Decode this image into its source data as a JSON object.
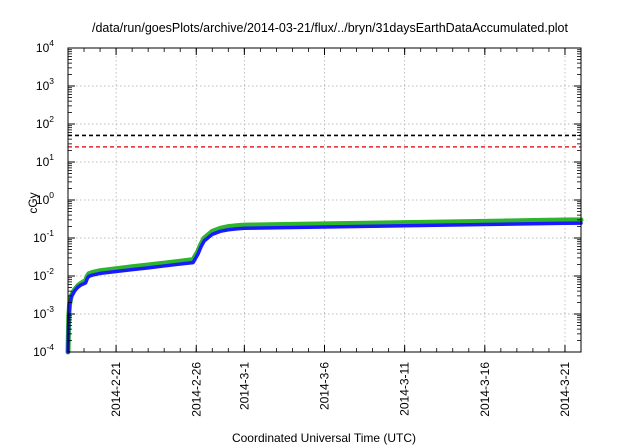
{
  "chart_data": {
    "type": "line",
    "title": "/data/run/goesPlots/archive/2014-03-21/flux/../bryn/31daysEarthDataAccumulated.plot",
    "xlabel": "Coordinated Universal Time (UTC)",
    "ylabel": "cGy",
    "y_scale": "log",
    "ylim": [
      0.0001,
      10000
    ],
    "xlim": [
      "2014-02-18",
      "2014-03-22"
    ],
    "grid": true,
    "y_ticks": [
      {
        "value": 0.0001,
        "base": "10",
        "exp": "-4"
      },
      {
        "value": 0.001,
        "base": "10",
        "exp": "-3"
      },
      {
        "value": 0.01,
        "base": "10",
        "exp": "-2"
      },
      {
        "value": 0.1,
        "base": "10",
        "exp": "-1"
      },
      {
        "value": 1,
        "base": "10",
        "exp": "0"
      },
      {
        "value": 10,
        "base": "10",
        "exp": "1"
      },
      {
        "value": 100,
        "base": "10",
        "exp": "2"
      },
      {
        "value": 1000,
        "base": "10",
        "exp": "3"
      },
      {
        "value": 10000,
        "base": "10",
        "exp": "4"
      }
    ],
    "x_ticks": [
      {
        "date": "2014-02-21",
        "label": "2014-2-21"
      },
      {
        "date": "2014-02-26",
        "label": "2014-2-26"
      },
      {
        "date": "2014-03-01",
        "label": "2014-3-1"
      },
      {
        "date": "2014-03-06",
        "label": "2014-3-6"
      },
      {
        "date": "2014-03-11",
        "label": "2014-3-11"
      },
      {
        "date": "2014-03-16",
        "label": "2014-3-16"
      },
      {
        "date": "2014-03-21",
        "label": "2014-3-21"
      }
    ],
    "reference_lines": [
      {
        "y": 50,
        "color": "#000000",
        "style": "dashed"
      },
      {
        "y": 25,
        "color": "#e8262a",
        "style": "dashed"
      }
    ],
    "series": [
      {
        "color": "#2db52d",
        "points": [
          [
            "2014-02-18T00:00",
            0.0001
          ],
          [
            "2014-02-18T01:12",
            0.0009
          ],
          [
            "2014-02-18T02:24",
            0.0018
          ],
          [
            "2014-02-18T04:48",
            0.003
          ],
          [
            "2014-02-18T09:36",
            0.0043
          ],
          [
            "2014-02-18T14:24",
            0.0055
          ],
          [
            "2014-02-18T19:12",
            0.0064
          ],
          [
            "2014-02-19T00:00",
            0.0072
          ],
          [
            "2014-02-19T02:24",
            0.0076
          ],
          [
            "2014-02-19T04:48",
            0.0098
          ],
          [
            "2014-02-19T07:12",
            0.0115
          ],
          [
            "2014-02-19T12:00",
            0.0123
          ],
          [
            "2014-02-20T00:00",
            0.0138
          ],
          [
            "2014-02-21T00:00",
            0.0155
          ],
          [
            "2014-02-22T00:00",
            0.0175
          ],
          [
            "2014-02-23T00:00",
            0.0195
          ],
          [
            "2014-02-24T00:00",
            0.0218
          ],
          [
            "2014-02-25T00:00",
            0.0245
          ],
          [
            "2014-02-25T19:12",
            0.027
          ],
          [
            "2014-02-26T02:24",
            0.044
          ],
          [
            "2014-02-26T07:12",
            0.07
          ],
          [
            "2014-02-26T12:00",
            0.1
          ],
          [
            "2014-02-27T00:00",
            0.15
          ],
          [
            "2014-02-27T12:00",
            0.18
          ],
          [
            "2014-02-28T00:00",
            0.2
          ],
          [
            "2014-02-28T12:00",
            0.21
          ],
          [
            "2014-03-01T00:00",
            0.218
          ],
          [
            "2014-03-03T00:00",
            0.225
          ],
          [
            "2014-03-05T00:00",
            0.232
          ],
          [
            "2014-03-07T00:00",
            0.239
          ],
          [
            "2014-03-09T00:00",
            0.246
          ],
          [
            "2014-03-11T00:00",
            0.254
          ],
          [
            "2014-03-13T00:00",
            0.262
          ],
          [
            "2014-03-15T00:00",
            0.27
          ],
          [
            "2014-03-17T00:00",
            0.279
          ],
          [
            "2014-03-19T00:00",
            0.288
          ],
          [
            "2014-03-21T00:00",
            0.297
          ],
          [
            "2014-03-22T00:00",
            0.3
          ]
        ]
      },
      {
        "color": "#1a1aff",
        "points": [
          [
            "2014-02-18T00:00",
            0.0001
          ],
          [
            "2014-02-18T01:12",
            0.0009
          ],
          [
            "2014-02-18T02:24",
            0.0017
          ],
          [
            "2014-02-18T04:48",
            0.0028
          ],
          [
            "2014-02-18T09:36",
            0.004
          ],
          [
            "2014-02-18T14:24",
            0.005
          ],
          [
            "2014-02-18T19:12",
            0.0058
          ],
          [
            "2014-02-19T00:00",
            0.0063
          ],
          [
            "2014-02-19T02:24",
            0.0066
          ],
          [
            "2014-02-19T04:48",
            0.0086
          ],
          [
            "2014-02-19T07:12",
            0.0098
          ],
          [
            "2014-02-19T12:00",
            0.0105
          ],
          [
            "2014-02-20T00:00",
            0.0117
          ],
          [
            "2014-02-21T00:00",
            0.0131
          ],
          [
            "2014-02-22T00:00",
            0.0147
          ],
          [
            "2014-02-23T00:00",
            0.0164
          ],
          [
            "2014-02-24T00:00",
            0.0184
          ],
          [
            "2014-02-25T00:00",
            0.0206
          ],
          [
            "2014-02-25T19:12",
            0.0225
          ],
          [
            "2014-02-26T02:24",
            0.037
          ],
          [
            "2014-02-26T07:12",
            0.059
          ],
          [
            "2014-02-26T12:00",
            0.084
          ],
          [
            "2014-02-27T00:00",
            0.125
          ],
          [
            "2014-02-27T12:00",
            0.15
          ],
          [
            "2014-02-28T00:00",
            0.165
          ],
          [
            "2014-02-28T12:00",
            0.174
          ],
          [
            "2014-03-01T00:00",
            0.18
          ],
          [
            "2014-03-03T00:00",
            0.186
          ],
          [
            "2014-03-05T00:00",
            0.192
          ],
          [
            "2014-03-07T00:00",
            0.198
          ],
          [
            "2014-03-09T00:00",
            0.204
          ],
          [
            "2014-03-11T00:00",
            0.21
          ],
          [
            "2014-03-13T00:00",
            0.216
          ],
          [
            "2014-03-15T00:00",
            0.223
          ],
          [
            "2014-03-17T00:00",
            0.23
          ],
          [
            "2014-03-19T00:00",
            0.237
          ],
          [
            "2014-03-21T00:00",
            0.244
          ],
          [
            "2014-03-22T00:00",
            0.247
          ]
        ]
      }
    ]
  }
}
